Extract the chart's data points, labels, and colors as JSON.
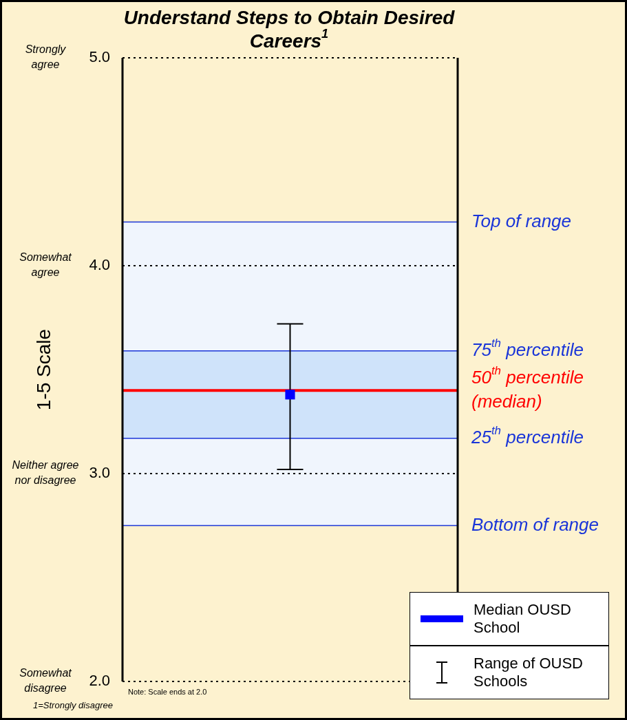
{
  "chart_data": {
    "type": "scatter",
    "title": "Understand Steps to Obtain Desired Careers$^{1}$",
    "ylabel": "1-5 Scale",
    "categories": [
      null
    ],
    "series": [
      {
        "name": "Median OUSD School",
        "type": "scatter",
        "color": "#0000ff",
        "values": [
          3.38
        ],
        "errors": [
          [
            3.02,
            3.72
          ]
        ]
      }
    ],
    "ylim": [
      2,
      5
    ],
    "yticks": [
      {
        "value": 2,
        "label": "2.0"
      },
      {
        "value": 3,
        "label": "3.0"
      },
      {
        "value": 4,
        "label": "4.0"
      },
      {
        "value": 5,
        "label": "5.0"
      }
    ],
    "grid": "y",
    "legend": "bottom right",
    "bands": [
      {
        "axis": "y",
        "from": 2.75,
        "to": 4.21,
        "color": "#f0f5fd"
      },
      {
        "axis": "y",
        "from": 3.17,
        "to": 3.59,
        "color": "#cfe3fa"
      }
    ],
    "ref_lines": [
      {
        "axis": "y",
        "value": 4.21,
        "label": "Top of range",
        "color": "#1a35d8"
      },
      {
        "axis": "y",
        "value": 3.59,
        "label": "75$^{th}$ percentile",
        "color": "#1a35d8"
      },
      {
        "axis": "y",
        "value": 3.4,
        "label": "50$^{th}$ percentile (median)",
        "color": "#ff0000"
      },
      {
        "axis": "y",
        "value": 3.17,
        "label": "25$^{th}$ percentile",
        "color": "#1a35d8"
      },
      {
        "axis": "y",
        "value": 2.75,
        "label": "Bottom of range",
        "color": "#1a35d8"
      }
    ],
    "annotations": [
      "Note: Scale ends at 2.0",
      "1=Strongly disagree",
      "Range of OUSD Schools",
      "Strongly agree",
      "Somewhat agree",
      "Neither agree nor disagree",
      "Somewhat disagree"
    ]
  }
}
